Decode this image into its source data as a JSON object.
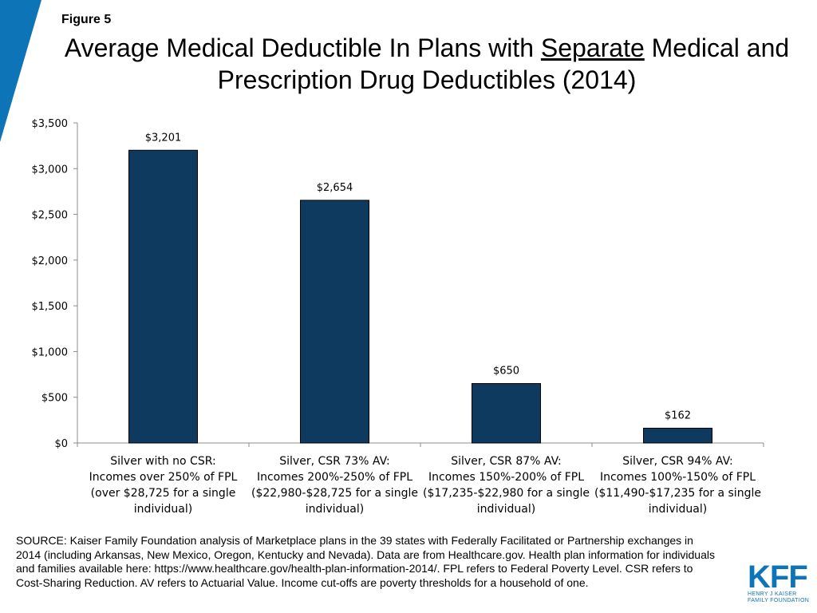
{
  "figure_label": "Figure 5",
  "title": {
    "part1": "Average Medical Deductible In Plans with ",
    "underlined": "Separate",
    "part2": " Medical and Prescription Drug Deductibles (2014)"
  },
  "chart_data": {
    "type": "bar",
    "title": "Average Medical Deductible In Plans with Separate Medical and Prescription Drug Deductibles (2014)",
    "categories": [
      [
        "Silver with no CSR:",
        "Incomes over 250% of FPL",
        "(over $28,725 for a single",
        "individual)"
      ],
      [
        "Silver, CSR 73% AV:",
        "Incomes 200%-250% of FPL",
        "($22,980-$28,725 for a single",
        "individual)"
      ],
      [
        "Silver, CSR 87% AV:",
        "Incomes 150%-200% of FPL",
        "($17,235-$22,980 for a single",
        "individual)"
      ],
      [
        "Silver, CSR 94% AV:",
        "Incomes 100%-150% of FPL",
        "($11,490-$17,235 for a single",
        "individual)"
      ]
    ],
    "values": [
      3201,
      2654,
      650,
      162
    ],
    "data_labels": [
      "$3,201",
      "$2,654",
      "$650",
      "$162"
    ],
    "y_ticks": [
      0,
      500,
      1000,
      1500,
      2000,
      2500,
      3000,
      3500
    ],
    "y_tick_labels": [
      "$0",
      "$500",
      "$1,000",
      "$1,500",
      "$2,000",
      "$2,500",
      "$3,000",
      "$3,500"
    ],
    "ylim": [
      0,
      3500
    ],
    "xlabel": "",
    "ylabel": "",
    "bar_color": "#0f3a5f",
    "grid": false
  },
  "source": "SOURCE: Kaiser Family Foundation analysis of Marketplace plans in the 39 states with Federally Facilitated or Partnership exchanges in 2014 (including Arkansas, New Mexico, Oregon, Kentucky and Nevada). Data are from Healthcare.gov. Health plan information for individuals and families available here: https://www.healthcare.gov/health-plan-information-2014/. FPL refers to Federal Poverty Level. CSR refers to Cost-Sharing Reduction. AV refers to Actuarial Value. Income cut-offs are poverty thresholds for a household of one.",
  "logo": {
    "text": "KFF",
    "line1": "HENRY J KAISER",
    "line2": "FAMILY FOUNDATION"
  },
  "colors": {
    "accent_blue": "#0e74b8",
    "bar": "#0f3a5f"
  }
}
